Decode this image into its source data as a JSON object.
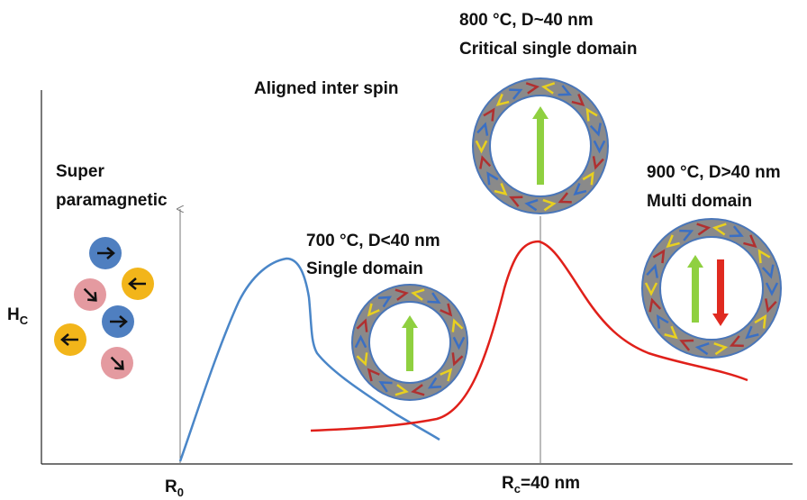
{
  "labels": {
    "top_temp": "800 °C, D~40 nm",
    "top_domain": "Critical single domain",
    "aligned": "Aligned inter spin",
    "super_1": "Super",
    "super_2": "paramagnetic",
    "right_temp": "900 °C, D>40 nm",
    "right_domain": "Multi domain",
    "mid_temp": "700 °C, D<40 nm",
    "mid_domain": "Single domain"
  },
  "y_axis_label": {
    "main": "H",
    "sub": "C"
  },
  "x_markers": [
    {
      "main": "R",
      "sub": "0"
    },
    {
      "main": "R",
      "sub": "c",
      "suffix": "=40 nm"
    }
  ]
}
